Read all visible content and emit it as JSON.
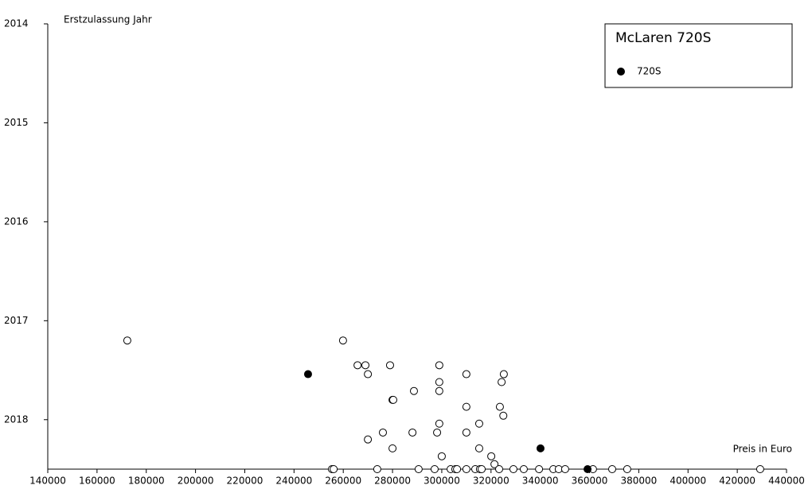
{
  "chart_data": {
    "type": "scatter",
    "x_label": "Preis in Euro",
    "y_label": "Erstzulassung Jahr",
    "legend_title": "McLaren 720S",
    "legend": "top-right",
    "xlim": [
      140000,
      440000
    ],
    "xticks": [
      140000,
      160000,
      180000,
      200000,
      220000,
      240000,
      260000,
      280000,
      300000,
      320000,
      340000,
      360000,
      380000,
      400000,
      420000,
      440000
    ],
    "ylim": [
      2018.5,
      2014
    ],
    "yticks": [
      2014,
      2015,
      2016,
      2017,
      2018
    ],
    "series": [
      {
        "color": "#ffffff",
        "x": [
          172300,
          259900,
          265800,
          269000,
          270000,
          279000,
          280000,
          280300,
          288700,
          299000,
          299000,
          299000,
          310000,
          325200,
          324300,
          310000,
          323600,
          325000,
          315200,
          299000,
          298100,
          288100,
          276100,
          310000,
          270000,
          280000,
          315200,
          300000,
          320100,
          321400,
          255400,
          256100,
          273800,
          290600,
          297100,
          303600,
          305500,
          306200,
          310000,
          313600,
          315500,
          316200,
          323300,
          329100,
          333300,
          339500,
          345300,
          347500,
          350100,
          361400,
          369200,
          375300,
          429300
        ],
        "values": [
          2017.2,
          2017.2,
          2017.45,
          2017.45,
          2017.54,
          2017.45,
          2017.8,
          2017.8,
          2017.71,
          2017.45,
          2017.62,
          2017.71,
          2017.54,
          2017.54,
          2017.62,
          2017.87,
          2017.87,
          2017.96,
          2018.04,
          2018.04,
          2018.13,
          2018.13,
          2018.13,
          2018.13,
          2018.2,
          2018.29,
          2018.29,
          2018.37,
          2018.37,
          2018.45,
          2018.5,
          2018.5,
          2018.5,
          2018.5,
          2018.5,
          2018.5,
          2018.5,
          2018.5,
          2018.5,
          2018.5,
          2018.5,
          2018.5,
          2018.5,
          2018.5,
          2018.5,
          2018.5,
          2018.5,
          2018.5,
          2018.5,
          2018.5,
          2018.5,
          2018.5,
          2018.5
        ]
      },
      {
        "name": "720S",
        "color": "#000000",
        "x": [
          245700,
          340100,
          359200
        ],
        "values": [
          2017.54,
          2018.29,
          2018.5
        ]
      }
    ]
  }
}
